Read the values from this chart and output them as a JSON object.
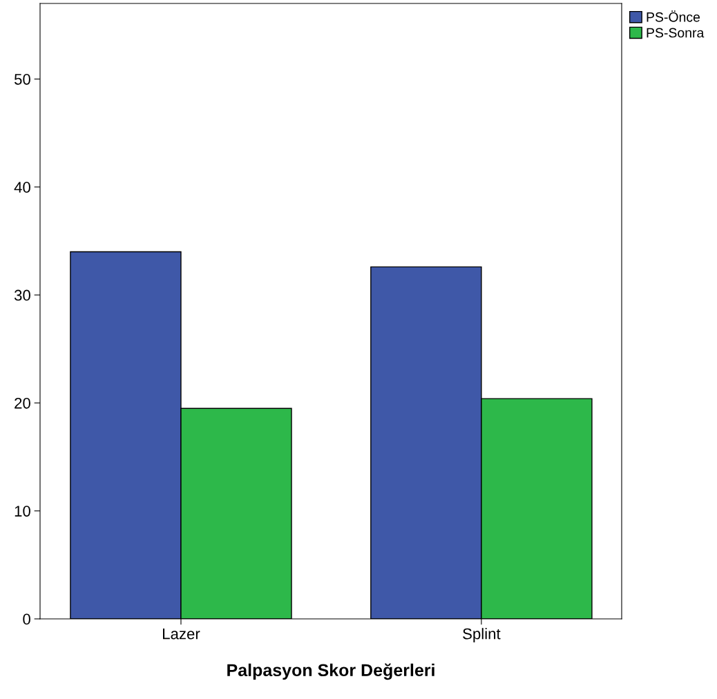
{
  "chart_data": {
    "type": "bar",
    "xlabel": "Palpasyon Skor Değerleri",
    "categories": [
      "Lazer",
      "Splint"
    ],
    "series": [
      {
        "name": "PS-Önce",
        "color": "#3f58a8",
        "values": [
          34.0,
          32.6
        ]
      },
      {
        "name": "PS-Sonra",
        "color": "#2db84a",
        "values": [
          19.5,
          20.4
        ]
      }
    ],
    "ylim": [
      0,
      57
    ],
    "yticks": [
      0,
      10,
      20,
      30,
      40,
      50
    ],
    "grid": false,
    "legend": "top right"
  }
}
